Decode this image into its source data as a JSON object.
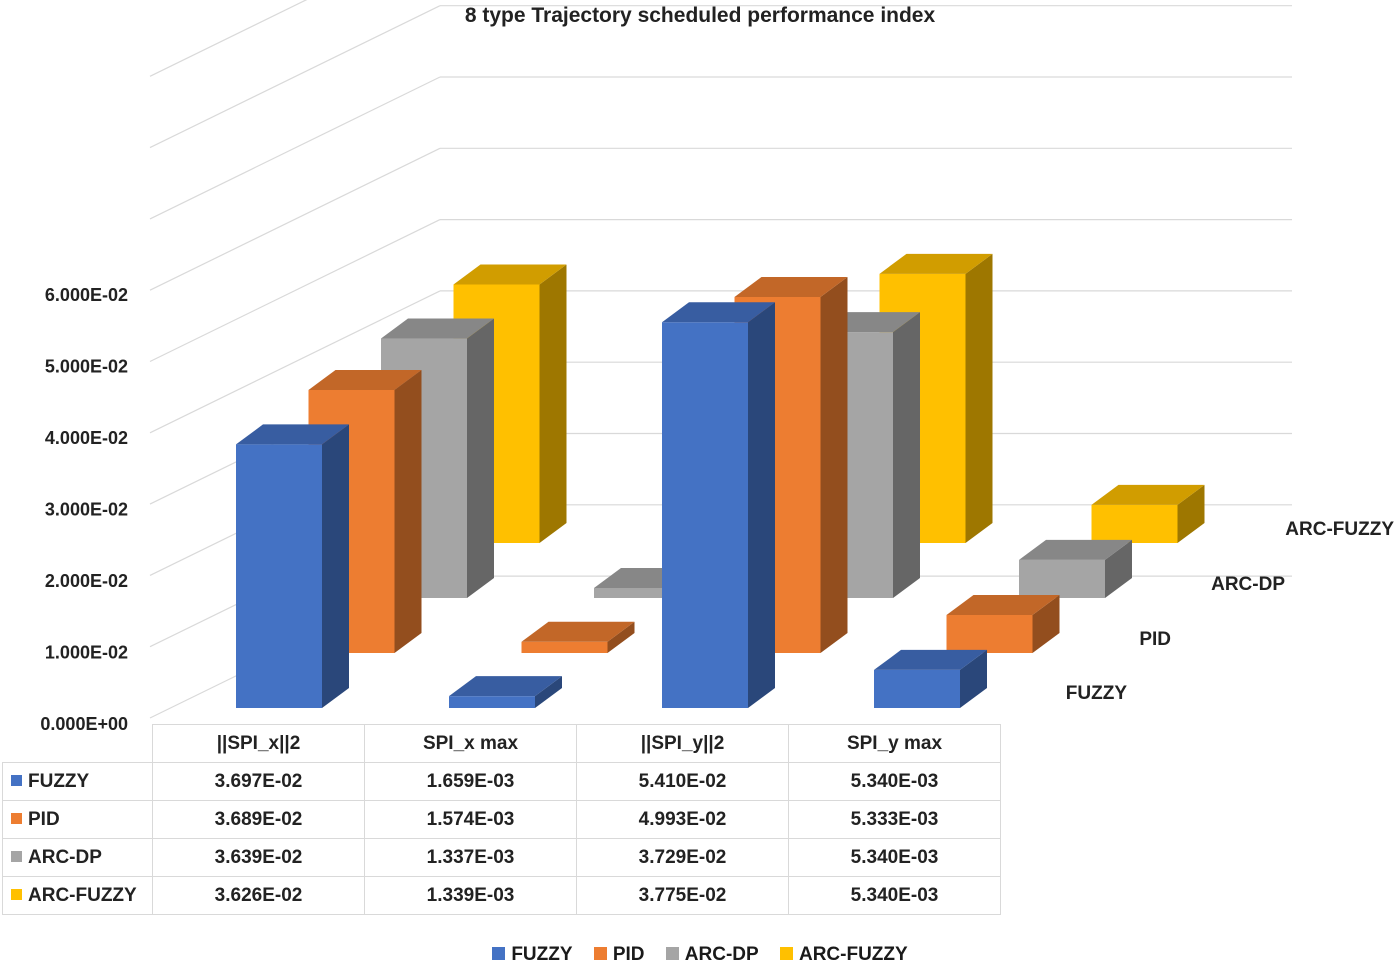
{
  "chart_data": {
    "type": "bar",
    "subtype": "3d-clustered-column-with-data-table",
    "title": "8 type Trajectory scheduled performance index",
    "categories": [
      "||SPI_x||2",
      "SPI_x max",
      "||SPI_y||2",
      "SPI_y max"
    ],
    "series": [
      {
        "name": "FUZZY",
        "color": "#4472C4",
        "values": [
          0.03697,
          0.001659,
          0.0541,
          0.00534
        ],
        "labels": [
          "3.697E-02",
          "1.659E-03",
          "5.410E-02",
          "5.340E-03"
        ]
      },
      {
        "name": "PID",
        "color": "#ED7D31",
        "values": [
          0.03689,
          0.001574,
          0.04993,
          0.005333
        ],
        "labels": [
          "3.689E-02",
          "1.574E-03",
          "4.993E-02",
          "5.333E-03"
        ]
      },
      {
        "name": "ARC-DP",
        "color": "#A5A5A5",
        "values": [
          0.03639,
          0.001337,
          0.03729,
          0.00534
        ],
        "labels": [
          "3.639E-02",
          "1.337E-03",
          "3.729E-02",
          "5.340E-03"
        ]
      },
      {
        "name": "ARC-FUZZY",
        "color": "#FFC000",
        "values": [
          0.03626,
          0.001339,
          0.03775,
          0.00534
        ],
        "labels": [
          "3.626E-02",
          "1.339E-03",
          "3.775E-02",
          "5.340E-03"
        ]
      }
    ],
    "yticks": [
      "0.000E+00",
      "1.000E-02",
      "2.000E-02",
      "3.000E-02",
      "4.000E-02",
      "5.000E-02",
      "6.000E-02"
    ],
    "ylim": [
      0,
      0.09
    ],
    "depth_labels": [
      "FUZZY",
      "PID",
      "ARC-DP",
      "ARC-FUZZY"
    ],
    "legend_position": "bottom",
    "grid": true
  }
}
